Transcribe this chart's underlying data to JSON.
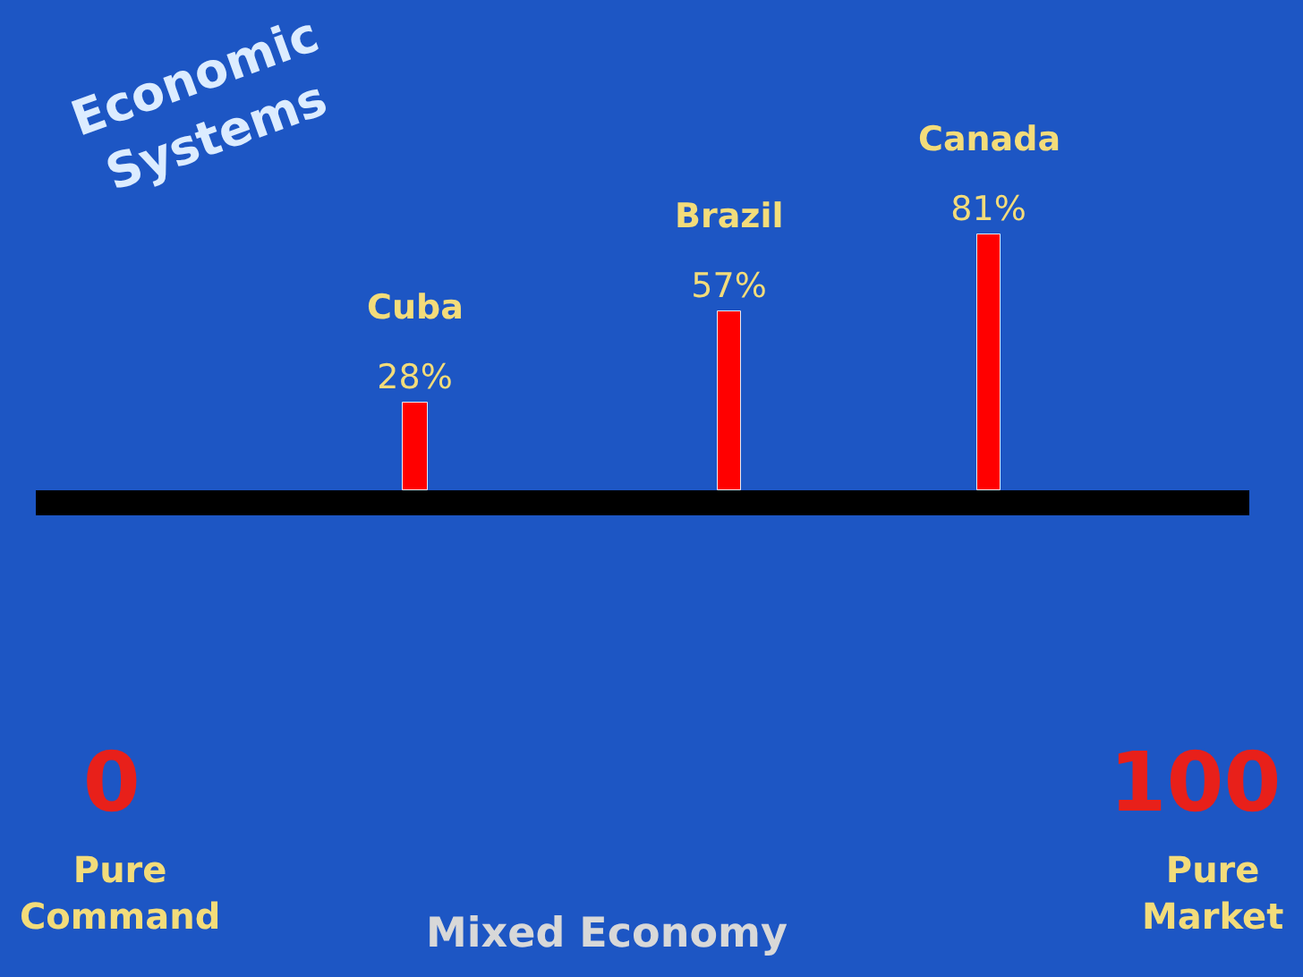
{
  "chart_data": {
    "type": "bar",
    "title": "Economic Systems",
    "x": [
      28,
      57,
      81
    ],
    "values": [
      28,
      57,
      81
    ],
    "color": "#ff0000",
    "value_labels": [
      "28%",
      "57%",
      "81%"
    ],
    "xlim": [
      -7,
      105
    ],
    "xticks": [
      0,
      100
    ],
    "tick_labels": "x",
    "annotations": [
      {
        "text": "Cuba",
        "x": 28,
        "y": 28
      },
      {
        "text": "Brazil",
        "x": 57,
        "y": 57
      },
      {
        "text": "Canada",
        "x": 81,
        "y": 81
      },
      "Pure Command",
      "Pure Market",
      "Mixed Economy"
    ]
  }
}
